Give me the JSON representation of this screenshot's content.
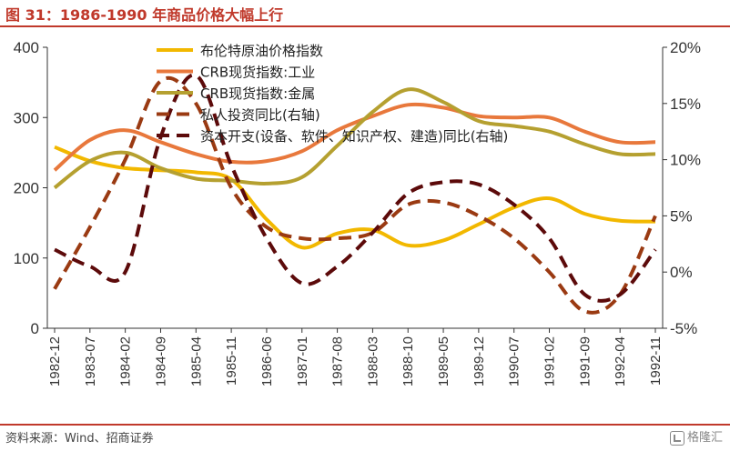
{
  "header": {
    "title": "图 31：1986-1990 年商品价格大幅上行"
  },
  "footer": {
    "source": "资料来源：Wind、招商证券",
    "watermark": "格隆汇"
  },
  "colors": {
    "brand": "#c0392b",
    "oil": "#f2b800",
    "crb_industrial": "#e8783c",
    "crb_metal": "#b5a030",
    "private_invest": "#9a3a12",
    "capex": "#5c0a0a",
    "axis": "#333333"
  },
  "chart_data": {
    "type": "line",
    "title": "",
    "categories": [
      "1982-12",
      "1983-07",
      "1984-02",
      "1984-09",
      "1985-04",
      "1985-11",
      "1986-06",
      "1987-01",
      "1987-08",
      "1988-03",
      "1988-10",
      "1989-05",
      "1989-12",
      "1990-07",
      "1991-02",
      "1991-09",
      "1992-04",
      "1992-11"
    ],
    "left_axis": {
      "ylim": [
        0,
        400
      ],
      "ticks": [
        "0",
        "100",
        "200",
        "300",
        "400"
      ]
    },
    "right_axis": {
      "ylim": [
        -5,
        20
      ],
      "ticks": [
        "-5%",
        "0%",
        "5%",
        "10%",
        "15%",
        "20%"
      ]
    },
    "grid": false,
    "legend_position": "top-center",
    "series": [
      {
        "name": "布伦特原油价格指数",
        "axis": "left",
        "style": "solid",
        "color_key": "oil",
        "x": [
          0,
          1,
          2,
          3,
          4,
          5,
          6,
          7,
          8,
          9,
          10,
          11,
          12,
          13,
          14,
          15,
          16,
          17
        ],
        "values": [
          258,
          238,
          228,
          225,
          222,
          212,
          155,
          115,
          135,
          140,
          118,
          125,
          148,
          172,
          185,
          163,
          153,
          152
        ]
      },
      {
        "name": "CRB现货指数:工业",
        "axis": "left",
        "style": "solid",
        "color_key": "crb_industrial",
        "x": [
          0,
          1,
          2,
          3,
          4,
          5,
          6,
          7,
          8,
          9,
          10,
          11,
          12,
          13,
          14,
          15,
          16,
          17
        ],
        "values": [
          225,
          268,
          282,
          265,
          248,
          237,
          238,
          252,
          282,
          302,
          318,
          314,
          302,
          300,
          300,
          280,
          265,
          265
        ]
      },
      {
        "name": "CRB现货指数:金属",
        "axis": "left",
        "style": "solid",
        "color_key": "crb_metal",
        "x": [
          0,
          1,
          2,
          3,
          4,
          5,
          6,
          7,
          8,
          9,
          10,
          11,
          12,
          13,
          14,
          15,
          16,
          17
        ],
        "values": [
          200,
          238,
          250,
          228,
          213,
          210,
          206,
          215,
          260,
          308,
          340,
          322,
          295,
          288,
          280,
          262,
          248,
          248
        ]
      },
      {
        "name": "私人投资同比(右轴)",
        "axis": "right",
        "style": "dashed",
        "color_key": "private_invest",
        "x": [
          0,
          1,
          2,
          3,
          4,
          5,
          6,
          7,
          8,
          9,
          10,
          11,
          12,
          13,
          14,
          15,
          16,
          17
        ],
        "values": [
          -1.5,
          4.0,
          10.0,
          17.0,
          15.0,
          7.5,
          4.0,
          3.0,
          3.0,
          3.5,
          6.0,
          6.2,
          5.0,
          3.0,
          0.0,
          -3.5,
          -2.0,
          5.0
        ]
      },
      {
        "name": "资本开支(设备、软件、知识产权、建造)同比(右轴)",
        "axis": "right",
        "style": "dashed",
        "color_key": "capex",
        "x": [
          0,
          1,
          2,
          3,
          4,
          5,
          6,
          7,
          8,
          9,
          10,
          11,
          12,
          13,
          14,
          15,
          16,
          17
        ],
        "values": [
          2.0,
          0.5,
          0.0,
          12.0,
          17.5,
          9.5,
          3.0,
          -1.0,
          0.5,
          3.5,
          7.0,
          8.0,
          7.8,
          6.0,
          3.0,
          -2.0,
          -2.0,
          2.0
        ]
      }
    ]
  }
}
